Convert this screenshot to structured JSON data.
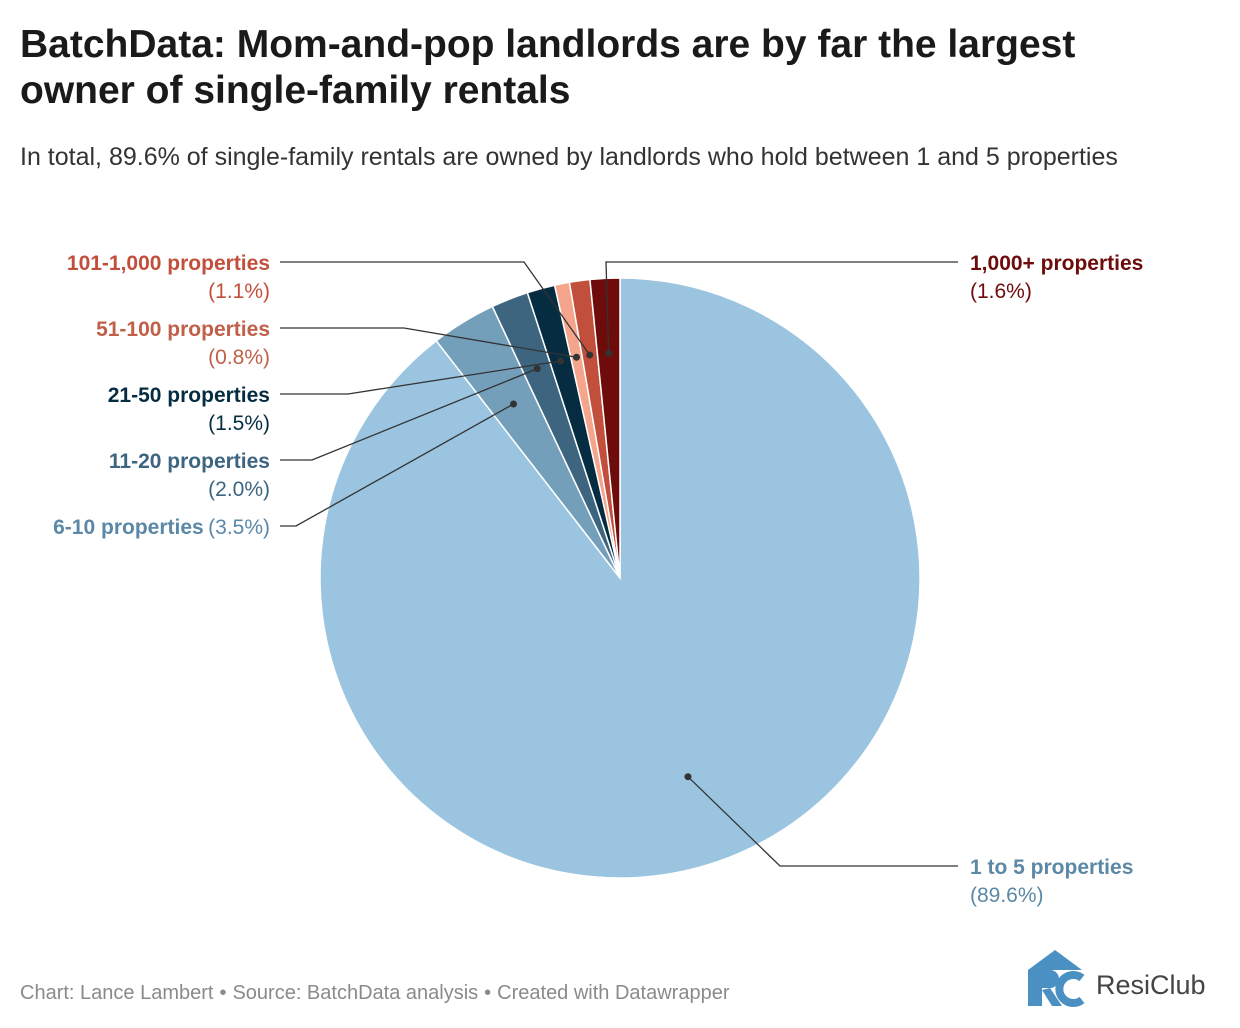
{
  "title": "BatchData: Mom-and-pop landlords are by far the largest owner of single-family rentals",
  "subtitle": "In total, 89.6% of single-family rentals are owned by landlords who hold between 1 and 5 properties",
  "footer": {
    "chart_credit": "Chart: Lance Lambert",
    "source": "Source: BatchData analysis",
    "tool": "Created with Datawrapper",
    "separator": "•"
  },
  "logo": {
    "text": "ResiClub",
    "colors": {
      "primary": "#4a90c2"
    }
  },
  "chart_data": {
    "type": "pie",
    "start": "12 o'clock, clockwise",
    "slices": [
      {
        "label": "1 to 5 properties",
        "value": 89.6,
        "display": "(89.6%)",
        "color": "#9ac4df",
        "label_color": "#5b88a6"
      },
      {
        "label": "6-10 properties",
        "value": 3.5,
        "display": "(3.5%)",
        "color": "#749fba",
        "label_color": "#5b88a6"
      },
      {
        "label": "11-20 properties",
        "value": 2.0,
        "display": "(2.0%)",
        "color": "#3d6580",
        "label_color": "#3d6580"
      },
      {
        "label": "21-50 properties",
        "value": 1.5,
        "display": "(1.5%)",
        "color": "#062c42",
        "label_color": "#062c42"
      },
      {
        "label": "51-100 properties",
        "value": 0.8,
        "display": "(0.8%)",
        "color": "#f4a58c",
        "label_color": "#c0604a"
      },
      {
        "label": "101-1,000 properties",
        "value": 1.1,
        "display": "(1.1%)",
        "color": "#c24f3c",
        "label_color": "#c24f3c"
      },
      {
        "label": "1,000+ properties",
        "value": 1.6,
        "display": "(1.6%)",
        "color": "#6e0b0b",
        "label_color": "#6e0b0b"
      }
    ]
  }
}
